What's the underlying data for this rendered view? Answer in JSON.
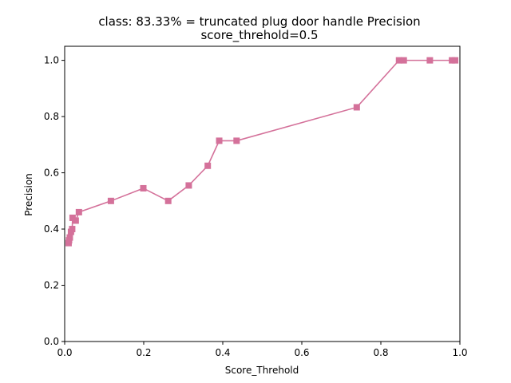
{
  "chart_data": {
    "type": "line",
    "title_line1": "class: 83.33% = truncated plug door handle Precision",
    "title_line2": "score_threhold=0.5",
    "xlabel": "Score_Threhold",
    "ylabel": "Precision",
    "xlim": [
      0,
      1
    ],
    "ylim": [
      0,
      1.05
    ],
    "xticks": [
      0.0,
      0.2,
      0.4,
      0.6,
      0.8,
      1.0
    ],
    "xtick_labels": [
      "0.0",
      "0.2",
      "0.4",
      "0.6",
      "0.8",
      "1.0"
    ],
    "yticks": [
      0.0,
      0.2,
      0.4,
      0.6,
      0.8,
      1.0
    ],
    "ytick_labels": [
      "0.0",
      "0.2",
      "0.4",
      "0.6",
      "0.8",
      "1.0"
    ],
    "grid": false,
    "series": [
      {
        "color": "#d4719a",
        "marker": "square",
        "x": [
          0.01,
          0.011,
          0.013,
          0.016,
          0.019,
          0.02,
          0.028,
          0.036,
          0.117,
          0.199,
          0.262,
          0.314,
          0.362,
          0.391,
          0.435,
          0.739,
          0.846,
          0.858,
          0.924,
          0.98,
          0.988
        ],
        "y": [
          0.35,
          0.36,
          0.37,
          0.39,
          0.4,
          0.44,
          0.43,
          0.46,
          0.5,
          0.545,
          0.5,
          0.555,
          0.625,
          0.714,
          0.714,
          0.833,
          1.0,
          1.0,
          1.0,
          1.0,
          1.0
        ]
      }
    ]
  }
}
